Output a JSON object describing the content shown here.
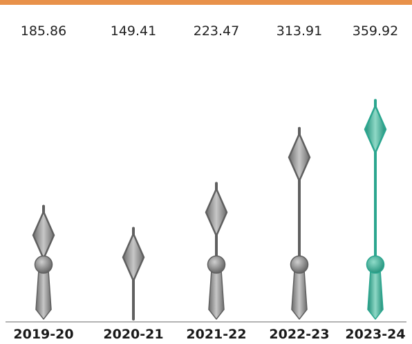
{
  "colors": {
    "top_rule": "#e8914a",
    "marker_default": "#5f5f5f",
    "marker_highlight": "#2ba68f",
    "baseline": "#9a9a9a"
  },
  "chart_data": {
    "type": "bar",
    "style": "pointer markers (clock-hand style), one per category",
    "categories": [
      "2019-20",
      "2020-21",
      "2021-22",
      "2022-23",
      "2023-24"
    ],
    "values": [
      185.86,
      149.41,
      223.47,
      313.91,
      359.92
    ],
    "value_labels": [
      "185.86",
      "149.41",
      "223.47",
      "313.91",
      "359.92"
    ],
    "highlight_index": 4,
    "title": "",
    "xlabel": "",
    "ylabel": "",
    "ylim": [
      0,
      400
    ],
    "grid": false,
    "legend": "none"
  }
}
